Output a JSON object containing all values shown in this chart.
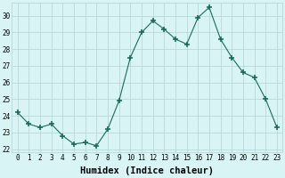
{
  "x": [
    0,
    1,
    2,
    3,
    4,
    5,
    6,
    7,
    8,
    9,
    10,
    11,
    12,
    13,
    14,
    15,
    16,
    17,
    18,
    19,
    20,
    21,
    22,
    23
  ],
  "y": [
    24.2,
    23.5,
    23.3,
    23.5,
    22.8,
    22.3,
    22.4,
    22.2,
    23.2,
    24.9,
    27.5,
    29.0,
    29.7,
    29.2,
    28.6,
    28.3,
    29.9,
    30.5,
    28.6,
    27.5,
    26.6,
    26.3,
    25.0,
    23.3
  ],
  "xlabel": "Humidex (Indice chaleur)",
  "line_color": "#1a6b5a",
  "marker": "+",
  "marker_size": 4,
  "bg_color": "#d8f4f4",
  "grid_color": "#b8d8d8",
  "ylim": [
    21.8,
    30.8
  ],
  "xlim": [
    -0.5,
    23.5
  ],
  "yticks": [
    22,
    23,
    24,
    25,
    26,
    27,
    28,
    29,
    30
  ],
  "xtick_labels": [
    "0",
    "1",
    "2",
    "3",
    "4",
    "5",
    "6",
    "7",
    "8",
    "9",
    "10",
    "11",
    "12",
    "13",
    "14",
    "15",
    "16",
    "17",
    "18",
    "19",
    "20",
    "21",
    "22",
    "23"
  ],
  "tick_fontsize": 5.5,
  "xlabel_fontsize": 7.5
}
